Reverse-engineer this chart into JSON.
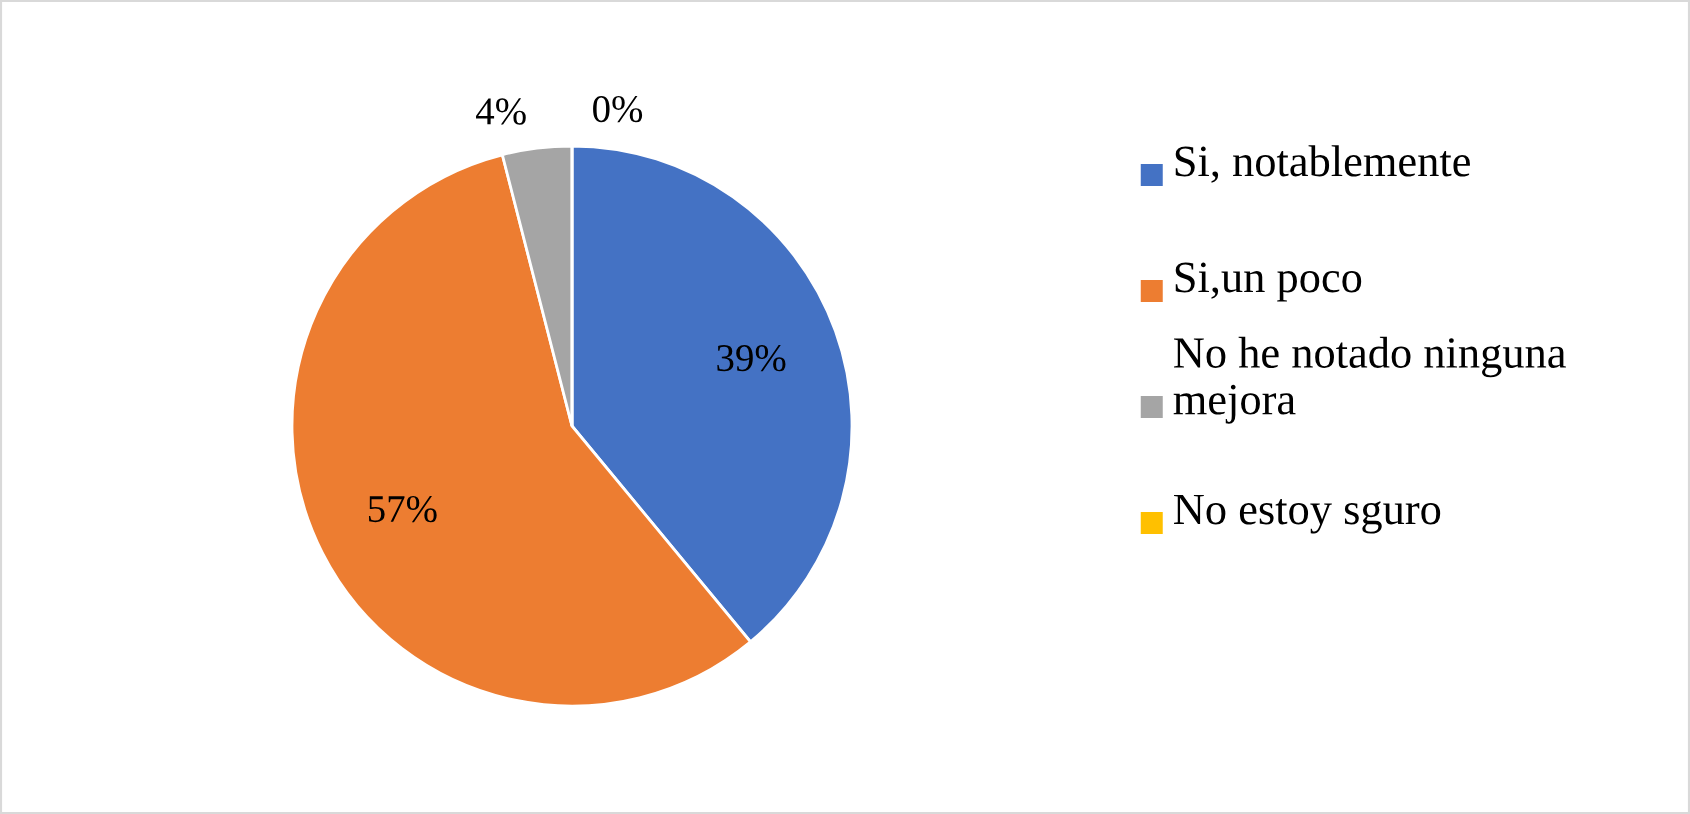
{
  "chart_data": {
    "type": "pie",
    "categories": [
      "Si, notablemente",
      "Si,un poco",
      "No he notado ninguna mejora",
      "No estoy sguro"
    ],
    "values": [
      39,
      57,
      4,
      0
    ],
    "colors": [
      "#4472c4",
      "#ed7d31",
      "#a5a5a5",
      "#ffc000"
    ],
    "value_labels": [
      "39%",
      "57%",
      "4%",
      "0%"
    ],
    "legend": "right"
  }
}
